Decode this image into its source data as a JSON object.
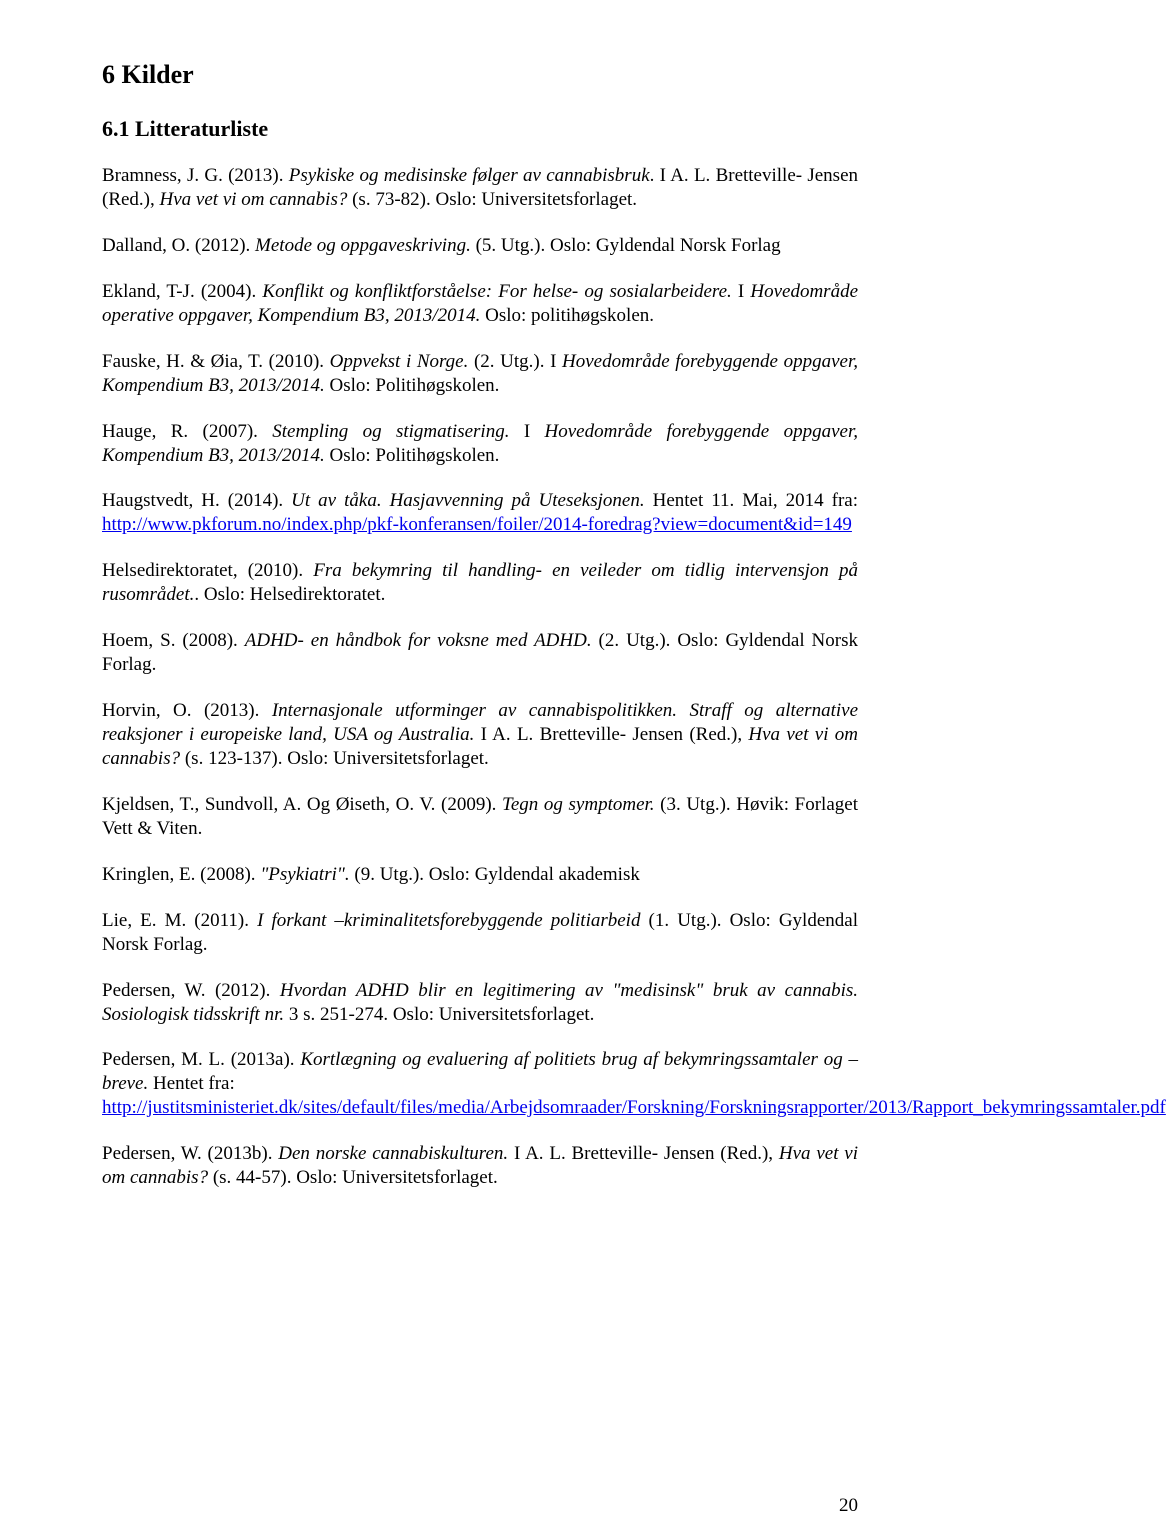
{
  "colors": {
    "text": "#000000",
    "link": "#0000ee",
    "background": "#ffffff"
  },
  "typography": {
    "font_family": "Times New Roman",
    "body_fontsize_pt": 12,
    "h1_fontsize_pt": 14,
    "h2_fontsize_pt": 13,
    "line_height": 1.26,
    "text_align": "justify"
  },
  "page_number": "20",
  "heading": "6    Kilder",
  "subheading": "6.1 Litteraturliste",
  "entries": [
    {
      "pre": "Bramness, J. G. (2013). ",
      "ital1": "Psykiske og medisinske følger av cannabisbruk",
      "mid": ". I A. L. Bretteville- Jensen (Red.), ",
      "ital2": "Hva vet vi om cannabis?",
      "post": " (s. 73-82). Oslo: Universitetsforlaget."
    },
    {
      "pre": "Dalland, O. (2012). ",
      "ital1": "Metode og oppgaveskriving.",
      "post": " (5. Utg.). Oslo: Gyldendal Norsk Forlag"
    },
    {
      "pre": "Ekland, T-J. (2004). ",
      "ital1": "Konflikt og konfliktforståelse: For helse- og sosialarbeidere.",
      "mid": " I ",
      "ital2": "Hovedområde operative oppgaver, Kompendium B3, 2013/2014.",
      "post": " Oslo: politihøgskolen."
    },
    {
      "pre": "Fauske, H. & Øia, T. (2010). ",
      "ital1": "Oppvekst i Norge.",
      "mid": " (2. Utg.). I ",
      "ital2": "Hovedområde forebyggende oppgaver, Kompendium B3, 2013/2014.",
      "post": " Oslo: Politihøgskolen."
    },
    {
      "pre": "Hauge, R. (2007). ",
      "ital1": "Stempling og stigmatisering.",
      "mid": " I ",
      "ital2": "Hovedområde forebyggende oppgaver, Kompendium B3, 2013/2014.",
      "post": " Oslo: Politihøgskolen."
    },
    {
      "pre": "Haugstvedt, H. (2014). ",
      "ital1": "Ut av tåka. Hasjavvenning på Uteseksjonen.",
      "post": " Hentet 11. Mai, 2014 fra: ",
      "link": "http://www.pkforum.no/index.php/pkf-konferansen/foiler/2014-foredrag?view=document&id=149"
    },
    {
      "pre": "Helsedirektoratet, (2010). ",
      "ital1": "Fra bekymring til handling- en veileder om tidlig intervensjon på rusområdet.",
      "post": ". Oslo: Helsedirektoratet."
    },
    {
      "pre": "Hoem, S. (2008). ",
      "ital1": "ADHD- en håndbok for voksne med ADHD.",
      "post": " (2. Utg.). Oslo: Gyldendal Norsk Forlag."
    },
    {
      "pre": "Horvin, O. (2013). ",
      "ital1": "Internasjonale utforminger av cannabispolitikken. Straff og alternative reaksjoner i europeiske land, USA og Australia.",
      "mid": " I A. L. Bretteville- Jensen (Red.), ",
      "ital2": "Hva vet vi om cannabis?",
      "post": " (s. 123-137). Oslo: Universitetsforlaget."
    },
    {
      "pre": "Kjeldsen, T., Sundvoll, A. Og Øiseth, O. V. (2009). ",
      "ital1": "Tegn og symptomer.",
      "post": " (3. Utg.). Høvik: Forlaget Vett & Viten."
    },
    {
      "pre": "Kringlen, E. (2008). ",
      "ital1": "\"Psykiatri\".",
      "post": " (9. Utg.). Oslo: Gyldendal akademisk"
    },
    {
      "pre": "Lie, E. M. (2011). ",
      "ital1": "I forkant –kriminalitetsforebyggende  politiarbeid",
      "post": " (1. Utg.). Oslo: Gyldendal Norsk Forlag."
    },
    {
      "pre": "Pedersen, W. (2012). ",
      "ital1": "Hvordan ADHD blir en legitimering av \"medisinsk\" bruk av cannabis. Sosiologisk tidsskrift nr.",
      "post": " 3 s. 251-274. Oslo: Universitetsforlaget."
    },
    {
      "pre": "Pedersen, M. L. (2013a). ",
      "ital1": "Kortlægning og evaluering af politiets brug af bekymringssamtaler og – breve.",
      "post": " Hentet fra:",
      "link": "http://justitsministeriet.dk/sites/default/files/media/Arbejdsomraader/Forskning/Forskningsrapporter/2013/Rapport_bekymringssamtaler.pdf"
    },
    {
      "pre": "Pedersen, W. (2013b). ",
      "ital1": "Den norske cannabiskulturen.",
      "mid": " I A. L. Bretteville- Jensen (Red.), ",
      "ital2": "Hva vet vi om cannabis?",
      "post": " (s. 44-57). Oslo: Universitetsforlaget."
    }
  ]
}
